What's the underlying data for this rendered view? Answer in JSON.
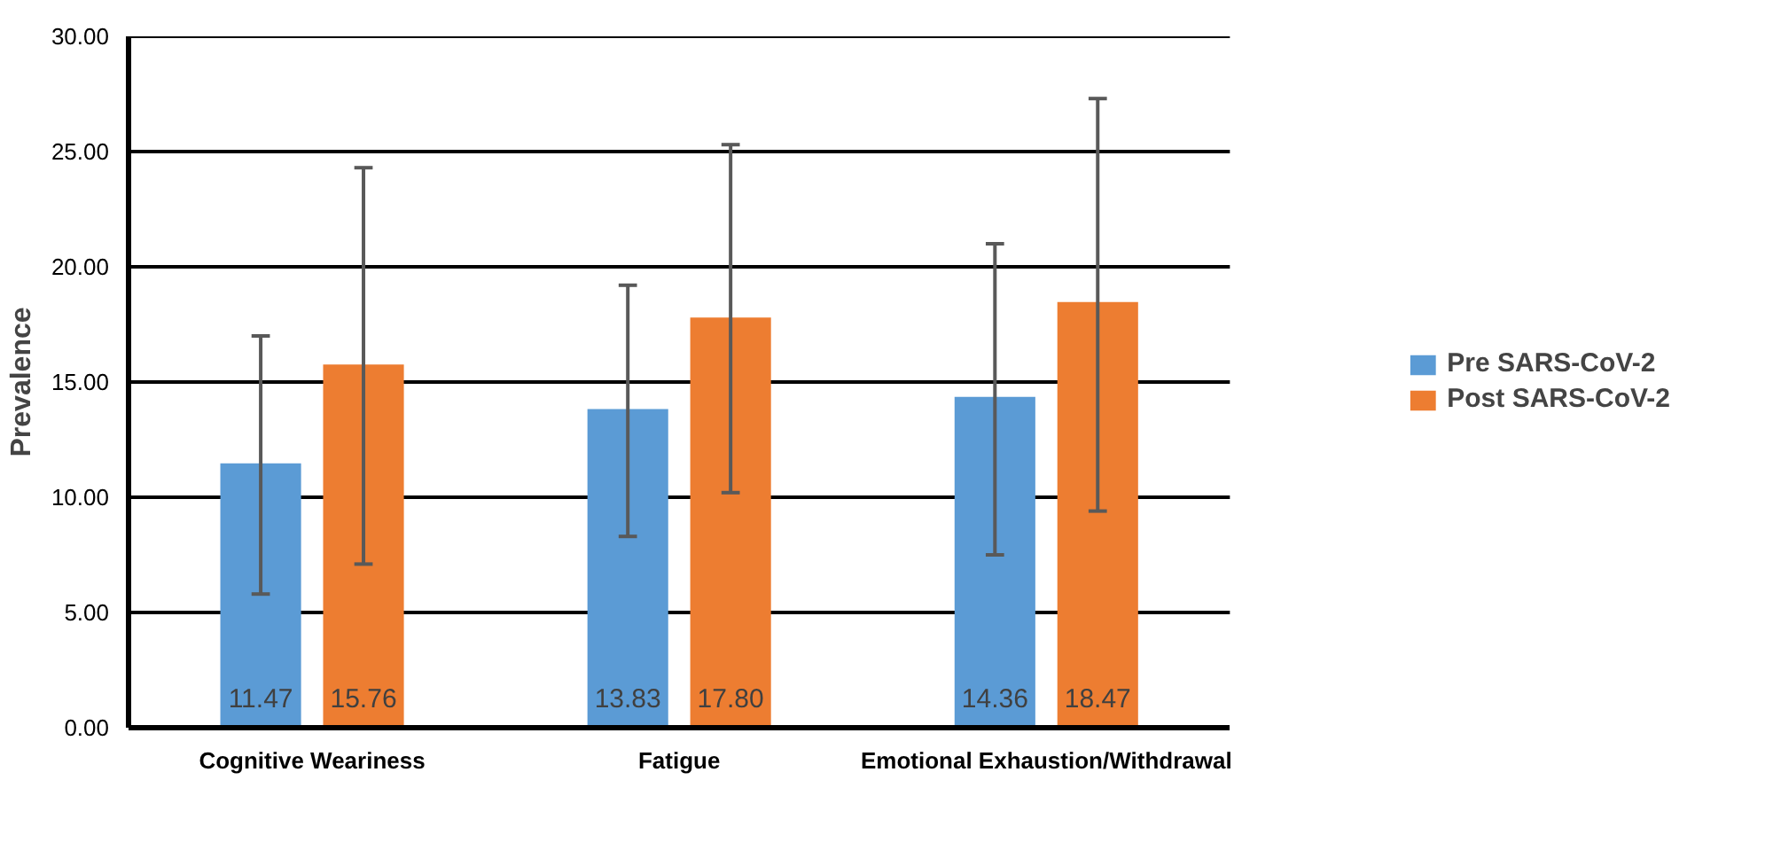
{
  "chart_data": {
    "type": "bar",
    "ylabel": "Prevalence",
    "categories": [
      "Cognitive Weariness",
      "Fatigue",
      "Emotional Exhaustion/Withdrawal"
    ],
    "series": [
      {
        "name": "Pre SARS-CoV-2",
        "color": "#5b9bd5",
        "values": [
          11.47,
          13.83,
          14.36
        ],
        "value_labels": [
          "11.47",
          "13.83",
          "14.36"
        ],
        "errors": [
          [
            5.8,
            17.0
          ],
          [
            8.3,
            19.2
          ],
          [
            7.5,
            21.0
          ]
        ]
      },
      {
        "name": "Post SARS-CoV-2",
        "color": "#ed7d31",
        "values": [
          15.76,
          17.8,
          18.47
        ],
        "value_labels": [
          "15.76",
          "17.80",
          "18.47"
        ],
        "errors": [
          [
            7.1,
            24.3
          ],
          [
            10.2,
            25.3
          ],
          [
            9.4,
            27.3
          ]
        ]
      }
    ],
    "ylim": [
      0,
      30
    ],
    "yticks": [
      {
        "value": 0,
        "label": "0.00"
      },
      {
        "value": 5,
        "label": "5.00"
      },
      {
        "value": 10,
        "label": "10.00"
      },
      {
        "value": 15,
        "label": "15.00"
      },
      {
        "value": 20,
        "label": "20.00"
      },
      {
        "value": 25,
        "label": "25.00"
      },
      {
        "value": 30,
        "label": "30.00"
      }
    ],
    "grid": "y",
    "legend": "right"
  }
}
